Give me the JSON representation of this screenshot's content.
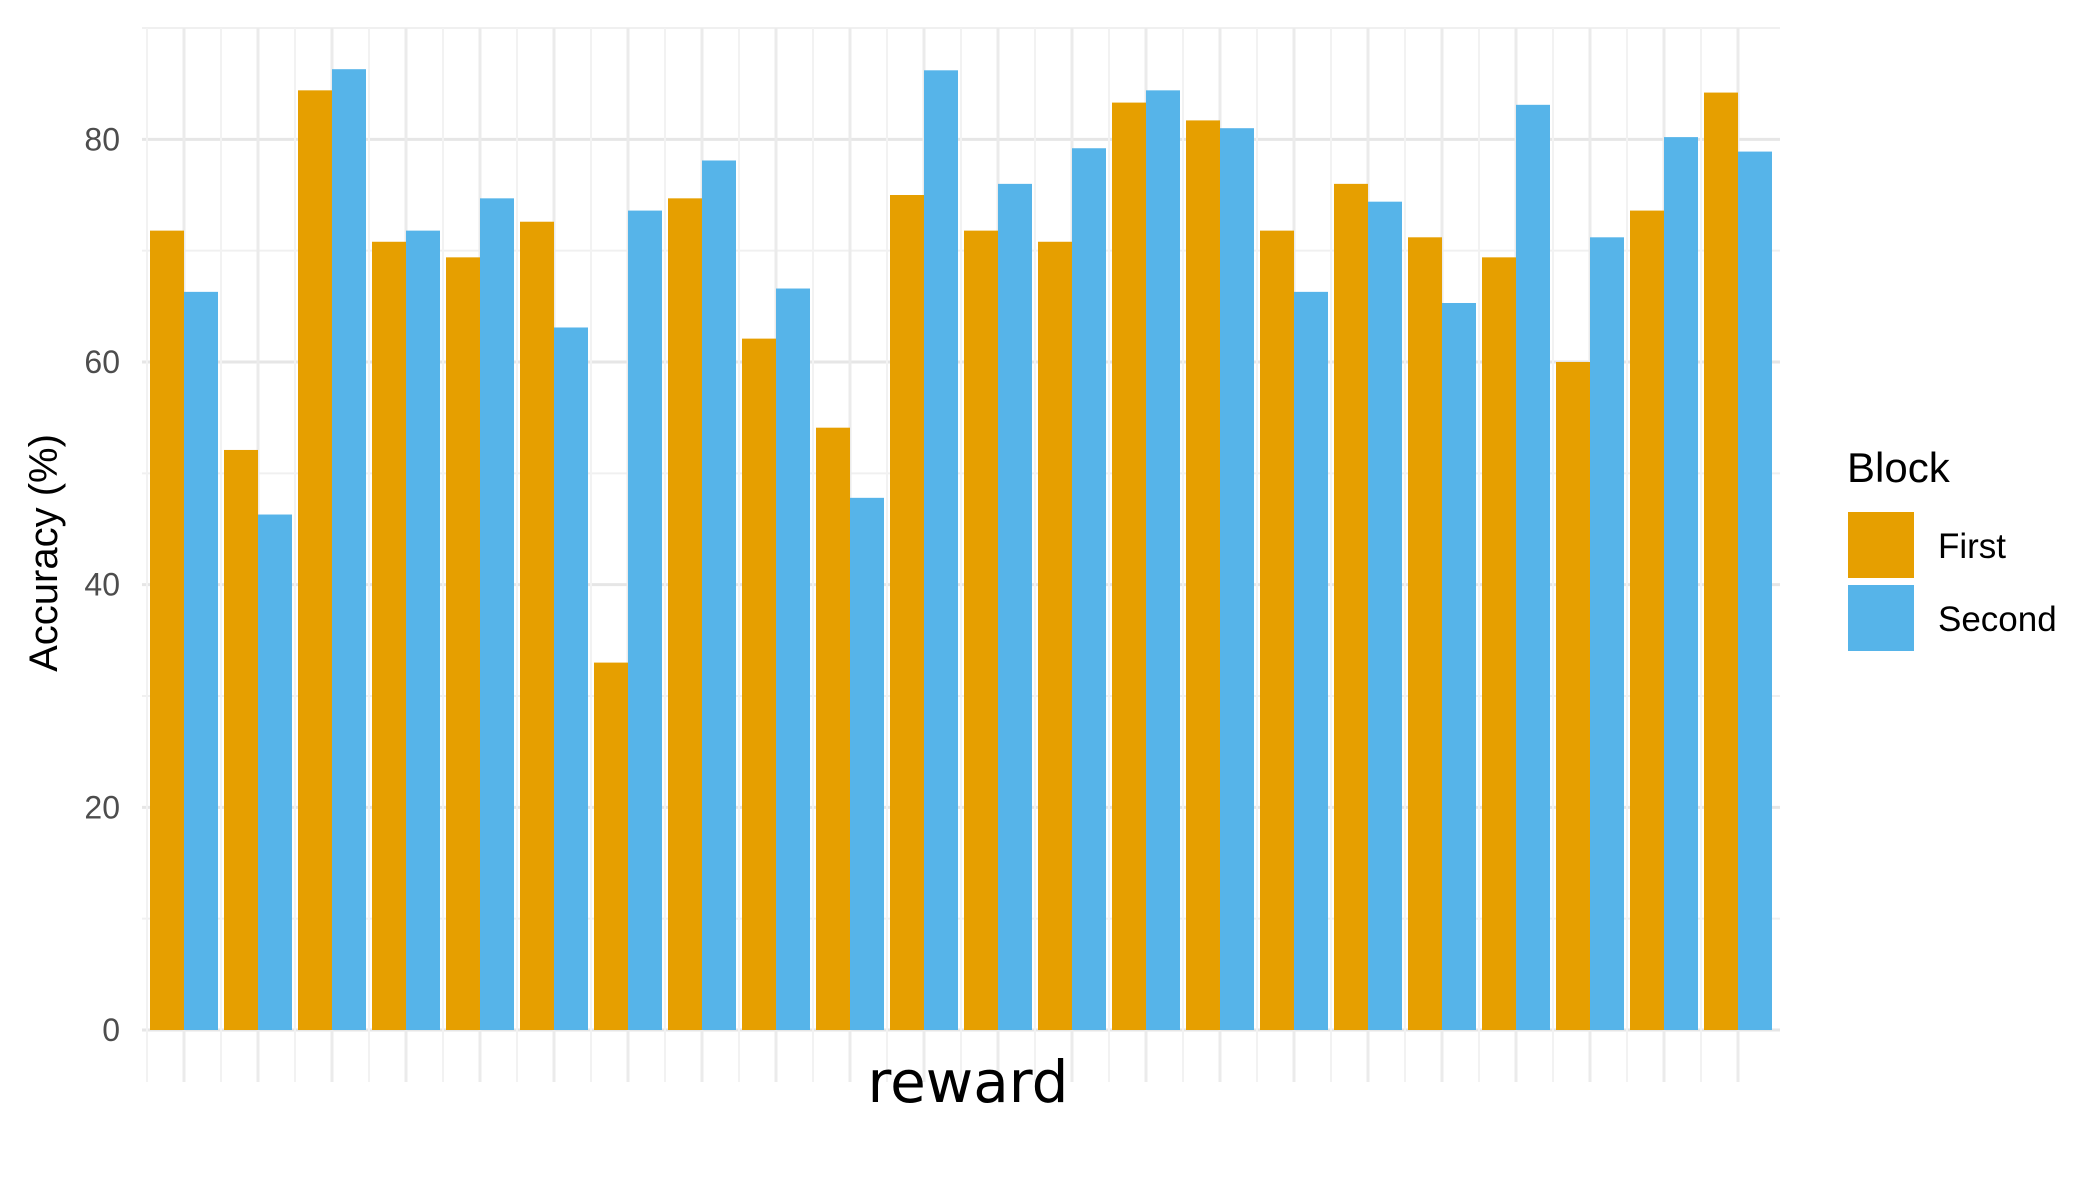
{
  "chart_data": {
    "type": "bar",
    "xlabel": "reward",
    "ylabel": "Accuracy (%)",
    "ylim": [
      0,
      90
    ],
    "yticks": [
      0,
      20,
      40,
      60,
      80
    ],
    "grid": true,
    "legend_position": "right",
    "legend_title": "Block",
    "category_count": 22,
    "series": [
      {
        "name": "First",
        "color": "#E69F00",
        "values": [
          71.8,
          52.1,
          84.4,
          70.8,
          69.4,
          72.6,
          33.0,
          74.7,
          62.1,
          54.1,
          75.0,
          71.8,
          70.8,
          83.3,
          81.7,
          71.8,
          76.0,
          71.2,
          69.4,
          60.0,
          73.6,
          84.2
        ]
      },
      {
        "name": "Second",
        "color": "#56B4E9",
        "values": [
          66.3,
          46.3,
          86.3,
          71.8,
          74.7,
          63.1,
          73.6,
          78.1,
          66.6,
          47.8,
          86.2,
          76.0,
          79.2,
          84.4,
          81.0,
          66.3,
          74.4,
          65.3,
          83.1,
          71.2,
          80.2,
          78.9
        ]
      }
    ]
  }
}
